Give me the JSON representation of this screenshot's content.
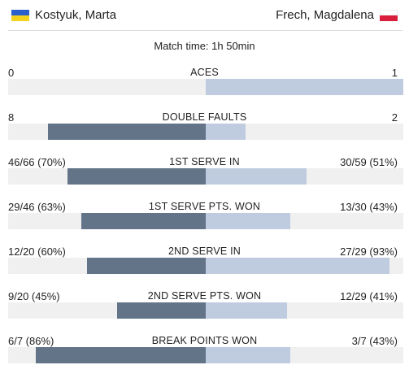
{
  "players": {
    "left": {
      "name": "Kostyuk, Marta",
      "flag_colors": [
        "#2b5fcc",
        "#f4d21e"
      ]
    },
    "right": {
      "name": "Frech, Magdalena",
      "flag_colors": [
        "#ffffff",
        "#d81e3a"
      ]
    }
  },
  "match_time": "Match time: 1h 50min",
  "colors": {
    "left_bar": "#637488",
    "right_bar": "#bfcce0",
    "track": "#f0f0f0"
  },
  "stats": [
    {
      "label": "ACES",
      "left": "0",
      "right": "1",
      "left_share": 0.0,
      "right_share": 1.0
    },
    {
      "label": "DOUBLE FAULTS",
      "left": "8",
      "right": "2",
      "left_share": 0.8,
      "right_share": 0.2
    },
    {
      "label": "1ST SERVE IN",
      "left": "46/66 (70%)",
      "right": "30/59 (51%)",
      "left_share": 0.7,
      "right_share": 0.51
    },
    {
      "label": "1ST SERVE PTS. WON",
      "left": "29/46 (63%)",
      "right": "13/30 (43%)",
      "left_share": 0.63,
      "right_share": 0.43
    },
    {
      "label": "2ND SERVE IN",
      "left": "12/20 (60%)",
      "right": "27/29 (93%)",
      "left_share": 0.6,
      "right_share": 0.93
    },
    {
      "label": "2ND SERVE PTS. WON",
      "left": "9/20 (45%)",
      "right": "12/29 (41%)",
      "left_share": 0.45,
      "right_share": 0.41
    },
    {
      "label": "BREAK POINTS WON",
      "left": "6/7 (86%)",
      "right": "3/7 (43%)",
      "left_share": 0.86,
      "right_share": 0.43
    }
  ]
}
